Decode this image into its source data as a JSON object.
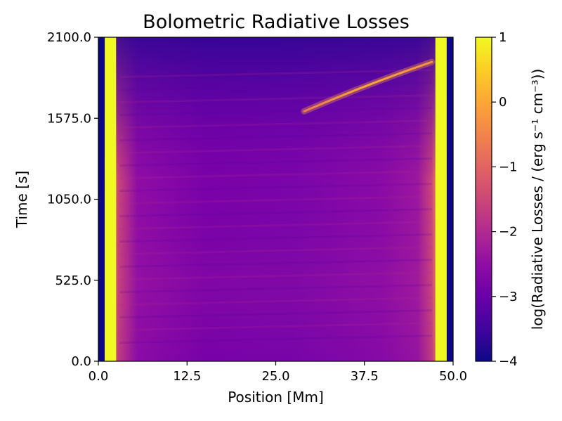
{
  "chart_data": {
    "type": "heatmap",
    "title": "Bolometric Radiative Losses",
    "xlabel": "Position [Mm]",
    "ylabel": "Time [s]",
    "xlim": [
      0.0,
      50.0
    ],
    "ylim": [
      0.0,
      2100.0
    ],
    "x_ticks": [
      "0.0",
      "12.5",
      "25.0",
      "37.5",
      "50.0"
    ],
    "x_tick_values": [
      0.0,
      12.5,
      25.0,
      37.5,
      50.0
    ],
    "y_ticks": [
      "0.0",
      "525.0",
      "1050.0",
      "1575.0",
      "2100.0"
    ],
    "y_tick_values": [
      0.0,
      525.0,
      1050.0,
      1575.0,
      2100.0
    ],
    "colorbar": {
      "label": "log(Radiative Losses / (erg s⁻¹ cm⁻³))",
      "colormap": "plasma",
      "range": [
        -4,
        1
      ],
      "ticks": [
        "−4",
        "−3",
        "−2",
        "−1",
        "0",
        "1"
      ],
      "tick_values": [
        -4,
        -3,
        -2,
        -1,
        0,
        1
      ]
    },
    "features": {
      "footpoint_regions_mm": [
        [
          0.0,
          2.5
        ],
        [
          47.5,
          50.0
        ]
      ],
      "footpoint_log_loss": 1.0,
      "corona_log_loss_range": [
        -3.6,
        -2.2
      ],
      "condensation_track": {
        "start": {
          "x": 29.0,
          "t": 1620.0
        },
        "end": {
          "x": 47.0,
          "t": 1940.0
        },
        "log_loss": -0.3
      }
    }
  }
}
